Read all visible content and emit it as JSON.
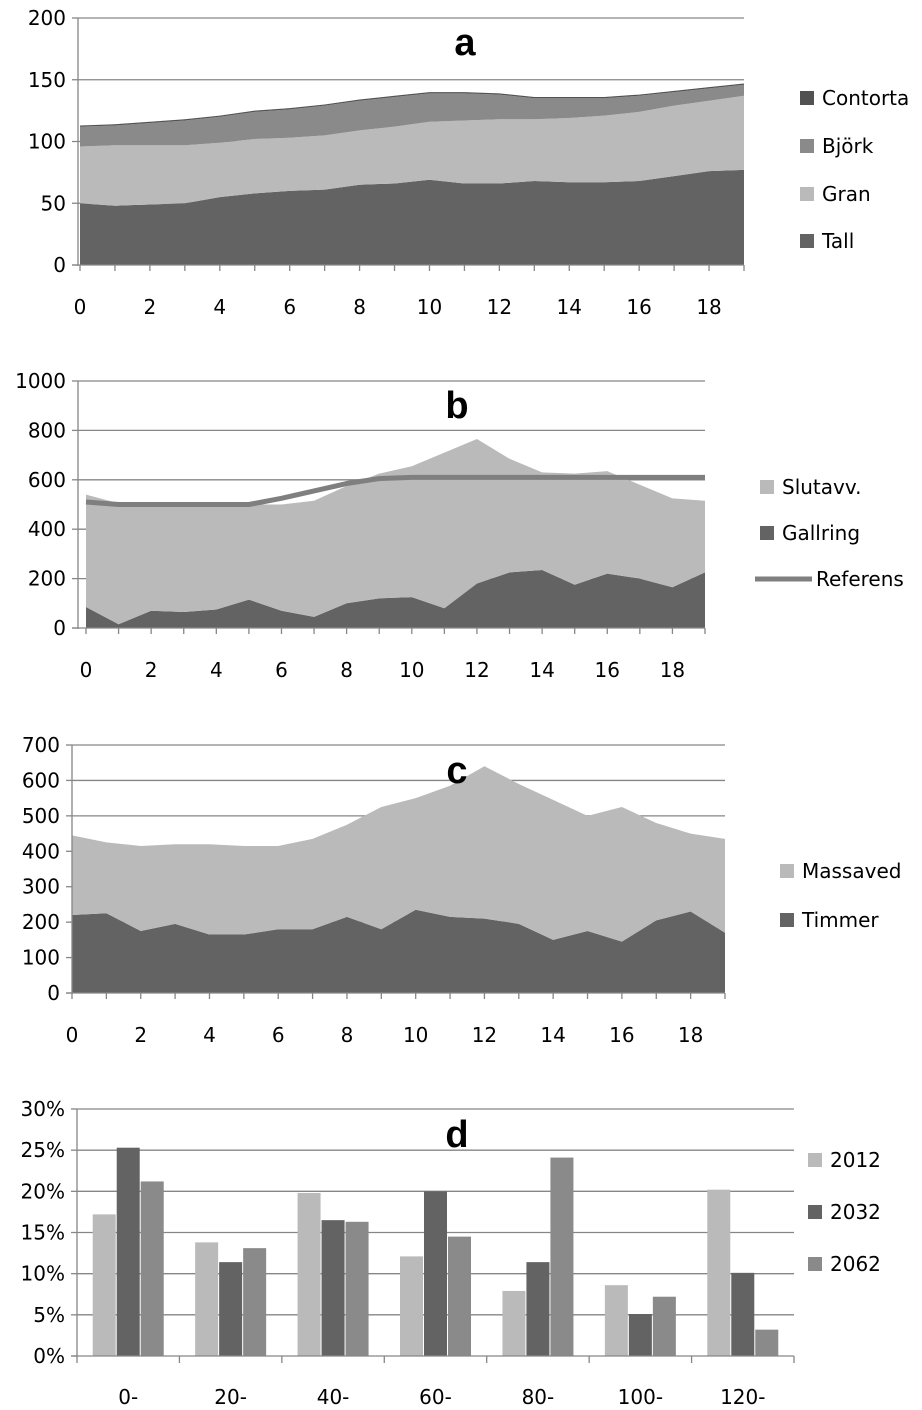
{
  "chart_data": [
    {
      "id": "a",
      "type": "area",
      "stacked": true,
      "title": "a",
      "x": [
        0,
        1,
        2,
        3,
        4,
        5,
        6,
        7,
        8,
        9,
        10,
        11,
        12,
        13,
        14,
        15,
        16,
        17,
        18,
        19
      ],
      "xticks": [
        0,
        2,
        4,
        6,
        8,
        10,
        12,
        14,
        16,
        18
      ],
      "ylim": [
        0,
        200
      ],
      "yticks": [
        0,
        50,
        100,
        150,
        200
      ],
      "grid": true,
      "legend_position": "right",
      "series": [
        {
          "name": "Tall",
          "color": "#636363",
          "values": [
            50,
            48,
            49,
            50,
            55,
            58,
            60,
            61,
            65,
            66,
            69,
            66,
            66,
            68,
            67,
            67,
            68,
            72,
            76,
            77
          ]
        },
        {
          "name": "Gran",
          "color": "#bababa",
          "values": [
            46,
            49,
            48,
            47,
            44,
            44,
            43,
            44,
            44,
            46,
            47,
            51,
            52,
            50,
            52,
            54,
            56,
            57,
            57,
            60
          ]
        },
        {
          "name": "Björk",
          "color": "#8a8a8a",
          "values": [
            16,
            16,
            18,
            20,
            21,
            22,
            23,
            24,
            24,
            24,
            23,
            22,
            20,
            17,
            16,
            14,
            13,
            11,
            10,
            9
          ]
        },
        {
          "name": "Contorta",
          "color": "#525252",
          "values": [
            1,
            1,
            1,
            1,
            1,
            1,
            1,
            1,
            1,
            1,
            1,
            1,
            1,
            1,
            1,
            1,
            1,
            1,
            1,
            1
          ]
        }
      ],
      "legend_order": [
        "Contorta",
        "Björk",
        "Gran",
        "Tall"
      ]
    },
    {
      "id": "b",
      "type": "area",
      "stacked": true,
      "title": "b",
      "x": [
        0,
        1,
        2,
        3,
        4,
        5,
        6,
        7,
        8,
        9,
        10,
        11,
        12,
        13,
        14,
        15,
        16,
        17,
        18,
        19
      ],
      "xticks": [
        0,
        2,
        4,
        6,
        8,
        10,
        12,
        14,
        16,
        18
      ],
      "ylim": [
        0,
        1000
      ],
      "yticks": [
        0,
        200,
        400,
        600,
        800,
        1000
      ],
      "grid": true,
      "legend_position": "right",
      "series": [
        {
          "name": "Gallring",
          "color": "#636363",
          "values": [
            85,
            15,
            70,
            65,
            75,
            115,
            70,
            45,
            100,
            120,
            125,
            80,
            180,
            225,
            235,
            175,
            220,
            200,
            165,
            225
          ]
        },
        {
          "name": "Slutavv.",
          "color": "#bababa",
          "values": [
            455,
            490,
            425,
            430,
            425,
            385,
            430,
            470,
            475,
            505,
            530,
            630,
            585,
            460,
            395,
            450,
            415,
            380,
            360,
            290
          ]
        }
      ],
      "line": {
        "name": "Referens",
        "color": "#7f7f7f",
        "values": [
          510,
          500,
          500,
          500,
          500,
          500,
          525,
          555,
          585,
          605,
          610,
          610,
          610,
          610,
          610,
          610,
          610,
          610,
          610,
          610
        ]
      },
      "legend_order": [
        "Slutavv.",
        "Gallring",
        "Referens"
      ]
    },
    {
      "id": "c",
      "type": "area",
      "stacked": true,
      "title": "c",
      "x": [
        0,
        1,
        2,
        3,
        4,
        5,
        6,
        7,
        8,
        9,
        10,
        11,
        12,
        13,
        14,
        15,
        16,
        17,
        18,
        19
      ],
      "xticks": [
        0,
        2,
        4,
        6,
        8,
        10,
        12,
        14,
        16,
        18
      ],
      "ylim": [
        0,
        700
      ],
      "yticks": [
        0,
        100,
        200,
        300,
        400,
        500,
        600,
        700
      ],
      "grid": true,
      "legend_position": "right",
      "series": [
        {
          "name": "Timmer",
          "color": "#636363",
          "values": [
            220,
            225,
            175,
            195,
            165,
            165,
            180,
            180,
            215,
            180,
            235,
            215,
            210,
            195,
            150,
            175,
            145,
            205,
            230,
            170
          ]
        },
        {
          "name": "Massaved",
          "color": "#bababa",
          "values": [
            225,
            200,
            240,
            225,
            255,
            250,
            235,
            255,
            260,
            345,
            315,
            370,
            430,
            395,
            395,
            325,
            380,
            275,
            220,
            265
          ]
        }
      ],
      "legend_order": [
        "Massaved",
        "Timmer"
      ]
    },
    {
      "id": "d",
      "type": "bar",
      "title": "d",
      "categories": [
        "0-",
        "20-",
        "40-",
        "60-",
        "80-",
        "100-",
        "120-"
      ],
      "ylim": [
        0,
        0.3
      ],
      "yticks": [
        0,
        0.05,
        0.1,
        0.15,
        0.2,
        0.25,
        0.3
      ],
      "ytick_labels": [
        "0%",
        "5%",
        "10%",
        "15%",
        "20%",
        "25%",
        "30%"
      ],
      "grid": true,
      "legend_position": "right",
      "series": [
        {
          "name": "2012",
          "color": "#bababa",
          "values": [
            0.172,
            0.138,
            0.198,
            0.121,
            0.079,
            0.086,
            0.202
          ]
        },
        {
          "name": "2032",
          "color": "#636363",
          "values": [
            0.253,
            0.114,
            0.165,
            0.2,
            0.114,
            0.051,
            0.101
          ]
        },
        {
          "name": "2062",
          "color": "#8a8a8a",
          "values": [
            0.212,
            0.131,
            0.163,
            0.145,
            0.241,
            0.072,
            0.032
          ]
        }
      ],
      "legend_order": [
        "2012",
        "2032",
        "2062"
      ]
    }
  ]
}
